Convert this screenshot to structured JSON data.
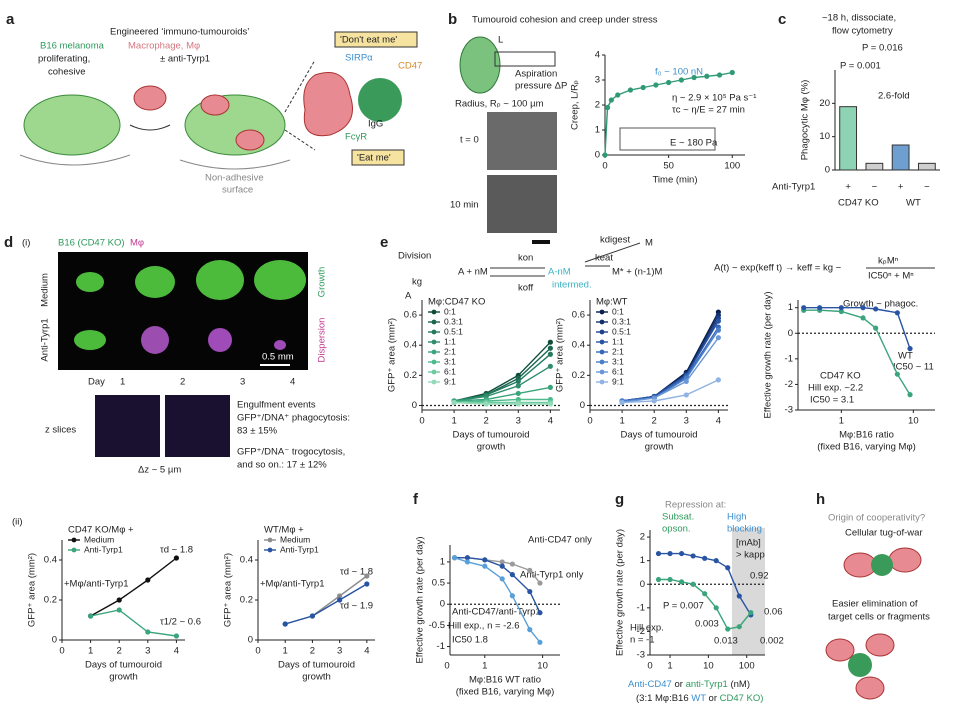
{
  "panels": {
    "a": {
      "letter": "a",
      "title": "Engineered ‘immuno-tumouroids’",
      "b16": "B16 melanoma",
      "macro": "Macrophage, Mφ",
      "anti": "± anti-Tyrp1",
      "prolif": "proliferating,",
      "cohesive": "cohesive",
      "dont": "'Don't eat me'",
      "sirpa": "SIRPα",
      "cd47": "CD47",
      "fcgr": "FcγR",
      "igg": "IgG",
      "eat": "'Eat me'",
      "surf1": "Non-adhesive",
      "surf2": "surface"
    },
    "b": {
      "letter": "b",
      "title": "Tumouroid cohesion and creep under stress",
      "L": "L",
      "asp1": "Aspiration",
      "asp2": "pressure ΔP",
      "radius": "Radius, Rₚ ~ 100 µm",
      "t0": "t = 0",
      "t10": "10 min",
      "f0": "f₀ ~ 100 nN",
      "eta": "η ~ 2.9 × 10⁵ Pa s⁻¹",
      "tau": "τc ~ η/E = 27 min",
      "E": "E ~ 180 Pa"
    },
    "c": {
      "letter": "c",
      "t1": "~18 h, dissociate,",
      "t2": "flow cytometry",
      "p1": "P = 0.016",
      "p2": "P = 0.001",
      "fold": "2.6-fold",
      "anti": "Anti-Tyrp1",
      "ko": "CD47 KO",
      "wt": "WT"
    },
    "d": {
      "letter": "d",
      "i": "(i)",
      "ii": "(ii)",
      "b16": "B16 (CD47 KO)",
      "mphi": "Mφ",
      "medium": "Medium",
      "anti": "Anti-Tyrp1",
      "growth": "Growth",
      "disp": "Dispersion",
      "day": "Day",
      "d1": "1",
      "d2": "2",
      "d3": "3",
      "d4": "4",
      "scale": "0.5 mm",
      "zs": "z slices",
      "dz": "Δz ~ 5 µm",
      "e1": "Engulfment events",
      "e2": "GFP⁺/DNA⁺ phagocytosis:",
      "e3": "83 ± 15%",
      "e4": "GFP⁺/DNA⁻ trogocytosis,",
      "e5": "and so on.: 17 ± 12%",
      "tdl": "τd ~ 1.8",
      "addl": "+Mφ/anti-Tyrp1",
      "thalf": "τ1/2 ~ 0.6",
      "tdr1": "τd ~ 1.8",
      "tdr2": "τd ~ 1.9",
      "addr": "+Mφ/anti-Tyrp1"
    },
    "e": {
      "letter": "e",
      "division": "Division",
      "kg": "kg",
      "anm": "A + nM",
      "kon": "kon",
      "koff": "koff",
      "a_nm": "A-nM",
      "inter": "intermed.",
      "kdig": "kdigest",
      "m": "M",
      "keat": "keat",
      "mstar": "M* + (n-1)M",
      "a": "A",
      "formula": "A(t) ~ exp(keff t) → keff = kg −",
      "num": "kₚMⁿ",
      "den": "IC50ⁿ + Mⁿ",
      "gp": "Growth ~ phagoc.",
      "ic50wt": "IC50 ~ 11",
      "hill": "Hill exp. ~2.2",
      "ic50ko": "IC50 = 3.1"
    },
    "f": {
      "letter": "f",
      "zero": "0",
      "hill": "Hill exp., n = -2.6",
      "ic50": "IC50 1.8"
    },
    "g": {
      "letter": "g",
      "zero": "0",
      "rep": "Repression at:",
      "sub": "Subsat.",
      "opson": "opson.",
      "high": "High",
      "block": "blocking",
      "mab": "[mAb]",
      "kapp": "> kapp",
      "p": "P = 0.007",
      "p2": "0.003",
      "p3": "0.013",
      "p4": "0.002",
      "p5": "0.92",
      "p6": "0.06",
      "hill": "Hill exp.",
      "n": "n = -1",
      "or": "or",
      "nm": "(nM)",
      "x2a": "(3:1 Mφ:B16",
      "x2b": "WT",
      "x2c": "or",
      "x2d": "CD47 KO)"
    },
    "h": {
      "letter": "h",
      "q": "Origin of cooperativity?",
      "tug": "Cellular tug-of-war",
      "e1": "Easier elimination of",
      "e2": "target cells or fragments"
    }
  },
  "chart_data": [
    {
      "type": "line",
      "xlabel": [
        "Time (min)"
      ],
      "ylabel": "Creep, L/Rₚ",
      "xlim": [
        0,
        110
      ],
      "ylim": [
        0,
        4
      ],
      "xticks": [
        0,
        50,
        100
      ],
      "yticks": [
        0,
        1,
        2,
        3,
        4
      ],
      "x": [
        0,
        2,
        5,
        10,
        20,
        30,
        40,
        50,
        60,
        70,
        80,
        90,
        100
      ],
      "values": [
        0,
        1.9,
        2.2,
        2.4,
        2.6,
        2.7,
        2.8,
        2.9,
        3.0,
        3.1,
        3.15,
        3.2,
        3.3
      ],
      "color": "#2e9a78"
    },
    {
      "type": "bar",
      "ylabel": "Phagocytic Mφ (%)",
      "categories": [
        "+",
        "−",
        "+",
        "−"
      ],
      "values": [
        19,
        2,
        7.5,
        2
      ],
      "colors": [
        "#8ed4b4",
        "#cfcfcf",
        "#6f9fd0",
        "#cfcfcf"
      ],
      "ylim": [
        0,
        30
      ],
      "yticks": [
        0,
        10,
        20
      ]
    },
    {
      "type": "line",
      "ylabel": "GFP⁺ area (mm²)",
      "xlabel": [
        "Days of tumouroid",
        "growth"
      ],
      "legend_title": "Mφ:CD47 KO",
      "zero_line": true,
      "xlim": [
        0,
        4.3
      ],
      "ylim": [
        -0.03,
        0.7
      ],
      "xticks": [
        0,
        1,
        2,
        3,
        4
      ],
      "yticks": [
        0,
        0.2,
        0.4,
        0.6
      ],
      "x": [
        1,
        2,
        3,
        4
      ],
      "series": [
        {
          "name": "0:1",
          "color": "#0f4d3a",
          "values": [
            0.03,
            0.08,
            0.2,
            0.42
          ]
        },
        {
          "name": "0.3:1",
          "color": "#1b6650",
          "values": [
            0.03,
            0.07,
            0.18,
            0.38
          ]
        },
        {
          "name": "0.5:1",
          "color": "#237a5f",
          "values": [
            0.03,
            0.07,
            0.16,
            0.34
          ]
        },
        {
          "name": "1:1",
          "color": "#2e8e6c",
          "values": [
            0.03,
            0.06,
            0.13,
            0.26
          ]
        },
        {
          "name": "2:1",
          "color": "#3aa57c",
          "values": [
            0.03,
            0.04,
            0.08,
            0.12
          ]
        },
        {
          "name": "3:1",
          "color": "#4cba8c",
          "values": [
            0.02,
            0.03,
            0.04,
            0.04
          ]
        },
        {
          "name": "6:1",
          "color": "#6ccb9f",
          "values": [
            0.02,
            0.02,
            0.02,
            0.02
          ]
        },
        {
          "name": "9:1",
          "color": "#93dab8",
          "values": [
            0.02,
            0.01,
            0.01,
            0.01
          ]
        }
      ]
    },
    {
      "type": "line",
      "ylabel": "GFP⁺ area (mm²)",
      "xlabel": [
        "Days of tumouroid",
        "growth"
      ],
      "legend_title": "Mφ:WT",
      "zero_line": true,
      "xlim": [
        0,
        4.3
      ],
      "ylim": [
        -0.03,
        0.7
      ],
      "xticks": [
        0,
        1,
        2,
        3,
        4
      ],
      "yticks": [
        0,
        0.2,
        0.4,
        0.6
      ],
      "x": [
        1,
        2,
        3,
        4
      ],
      "series": [
        {
          "name": "0:1",
          "color": "#0b1f4d",
          "values": [
            0.03,
            0.06,
            0.22,
            0.62
          ]
        },
        {
          "name": "0.3:1",
          "color": "#13306e",
          "values": [
            0.03,
            0.06,
            0.21,
            0.6
          ]
        },
        {
          "name": "0.5:1",
          "color": "#1c418a",
          "values": [
            0.03,
            0.06,
            0.2,
            0.58
          ]
        },
        {
          "name": "1:1",
          "color": "#2854a3",
          "values": [
            0.03,
            0.06,
            0.2,
            0.56
          ]
        },
        {
          "name": "2:1",
          "color": "#3768b8",
          "values": [
            0.03,
            0.05,
            0.19,
            0.52
          ]
        },
        {
          "name": "3:1",
          "color": "#4a7ec9",
          "values": [
            0.03,
            0.05,
            0.18,
            0.5
          ]
        },
        {
          "name": "6:1",
          "color": "#6a98d7",
          "values": [
            0.02,
            0.05,
            0.16,
            0.45
          ]
        },
        {
          "name": "9:1",
          "color": "#8fb3e3",
          "values": [
            0.02,
            0.03,
            0.07,
            0.17
          ]
        }
      ]
    },
    {
      "type": "line",
      "ylabel": "Effective growth rate (per day)",
      "xlabel": [
        "Mφ:B16 ratio",
        "(fixed B16, varying Mφ)"
      ],
      "zero_line": true,
      "xlog": true,
      "xlim": [
        0.25,
        20
      ],
      "ylim": [
        -3,
        1.3
      ],
      "xticks": [
        1,
        10
      ],
      "yticks": [
        -3,
        -2,
        -1,
        0,
        1
      ],
      "x": [
        0.3,
        0.5,
        1,
        2,
        3,
        6,
        9
      ],
      "series": [
        {
          "name": "CD47 KO",
          "color": "#3aa57c",
          "values": [
            0.9,
            0.9,
            0.85,
            0.6,
            0.2,
            -1.6,
            -2.4
          ]
        },
        {
          "name": "WT",
          "color": "#2854a3",
          "values": [
            1,
            1,
            1,
            1,
            0.95,
            0.8,
            -0.6
          ]
        }
      ]
    },
    {
      "type": "line",
      "ylabel": "GFP⁺ area (mm²)",
      "xlabel": [
        "Days of tumouroid",
        "growth"
      ],
      "legend_title": "CD47 KO/Mφ +",
      "xlim": [
        0,
        4.3
      ],
      "ylim": [
        0,
        0.5
      ],
      "xticks": [
        0,
        1,
        2,
        3,
        4
      ],
      "yticks": [
        0,
        0.2,
        0.4
      ],
      "x": [
        1,
        2,
        3,
        4
      ],
      "series": [
        {
          "name": "Medium",
          "color": "#111111",
          "values": [
            0.12,
            0.2,
            0.3,
            0.41
          ]
        },
        {
          "name": "Anti-Tyrp1",
          "color": "#3aa57c",
          "values": [
            0.12,
            0.15,
            0.04,
            0.02
          ]
        }
      ]
    },
    {
      "type": "line",
      "ylabel": "GFP⁺ area (mm²)",
      "xlabel": [
        "Days of tumouroid",
        "growth"
      ],
      "legend_title": "WT/Mφ +",
      "xlim": [
        0,
        4.3
      ],
      "ylim": [
        0,
        0.5
      ],
      "xticks": [
        0,
        1,
        2,
        3,
        4
      ],
      "yticks": [
        0,
        0.2,
        0.4
      ],
      "x": [
        1,
        2,
        3,
        4
      ],
      "series": [
        {
          "name": "Medium",
          "color": "#8c8c8c",
          "values": [
            0.08,
            0.12,
            0.22,
            0.32
          ]
        },
        {
          "name": "Anti-Tyrp1",
          "color": "#2854a3",
          "values": [
            0.08,
            0.12,
            0.2,
            0.28
          ]
        }
      ]
    },
    {
      "type": "line",
      "ylabel": "Effective growth rate (per day)",
      "xlabel": [
        "Mφ:B16 WT ratio",
        "(fixed B16, varying Mφ)"
      ],
      "zero_line": true,
      "xlog": true,
      "xlim": [
        0.25,
        20
      ],
      "ylim": [
        -1.2,
        1.4
      ],
      "xticks": [
        1,
        10
      ],
      "yticks": [
        -1,
        -0.5,
        0,
        0.5,
        1
      ],
      "x": [
        0.3,
        0.5,
        1,
        2,
        3,
        6,
        9
      ],
      "series": [
        {
          "name": "Anti-CD47 only",
          "color": "#9a9a9a",
          "values": [
            1.1,
            1.1,
            1.05,
            1.0,
            0.95,
            0.8,
            0.5
          ]
        },
        {
          "name": "Anti-Tyrp1 only",
          "color": "#2854a3",
          "values": [
            1.1,
            1.1,
            1.05,
            0.9,
            0.7,
            0.3,
            -0.2
          ]
        },
        {
          "name": "Anti-CD47/anti-Tyrp1",
          "color": "#5aa0d8",
          "values": [
            1.1,
            1.0,
            0.9,
            0.6,
            0.2,
            -0.6,
            -0.9
          ]
        }
      ]
    },
    {
      "type": "line",
      "ylabel": "Effective growth rate (per day)",
      "zero_line": true,
      "xlog": true,
      "xlim": [
        0.3,
        300
      ],
      "ylim": [
        -3,
        2.3
      ],
      "xticks": [
        1,
        10,
        100
      ],
      "yticks": [
        -3,
        -2,
        -1,
        0,
        1,
        2
      ],
      "x": [
        0.5,
        1,
        2,
        4,
        8,
        16,
        32,
        64,
        128
      ],
      "series": [
        {
          "name": "Anti-CD47",
          "color": "#2854a3",
          "values": [
            1.3,
            1.3,
            1.3,
            1.2,
            1.1,
            1.0,
            0.7,
            -0.5,
            -1.3
          ]
        },
        {
          "name": "anti-Tyrp1",
          "color": "#3aa57c",
          "values": [
            0.2,
            0.2,
            0.1,
            0.0,
            -0.4,
            -1.0,
            -1.9,
            -1.8,
            -1.2
          ]
        }
      ]
    }
  ]
}
